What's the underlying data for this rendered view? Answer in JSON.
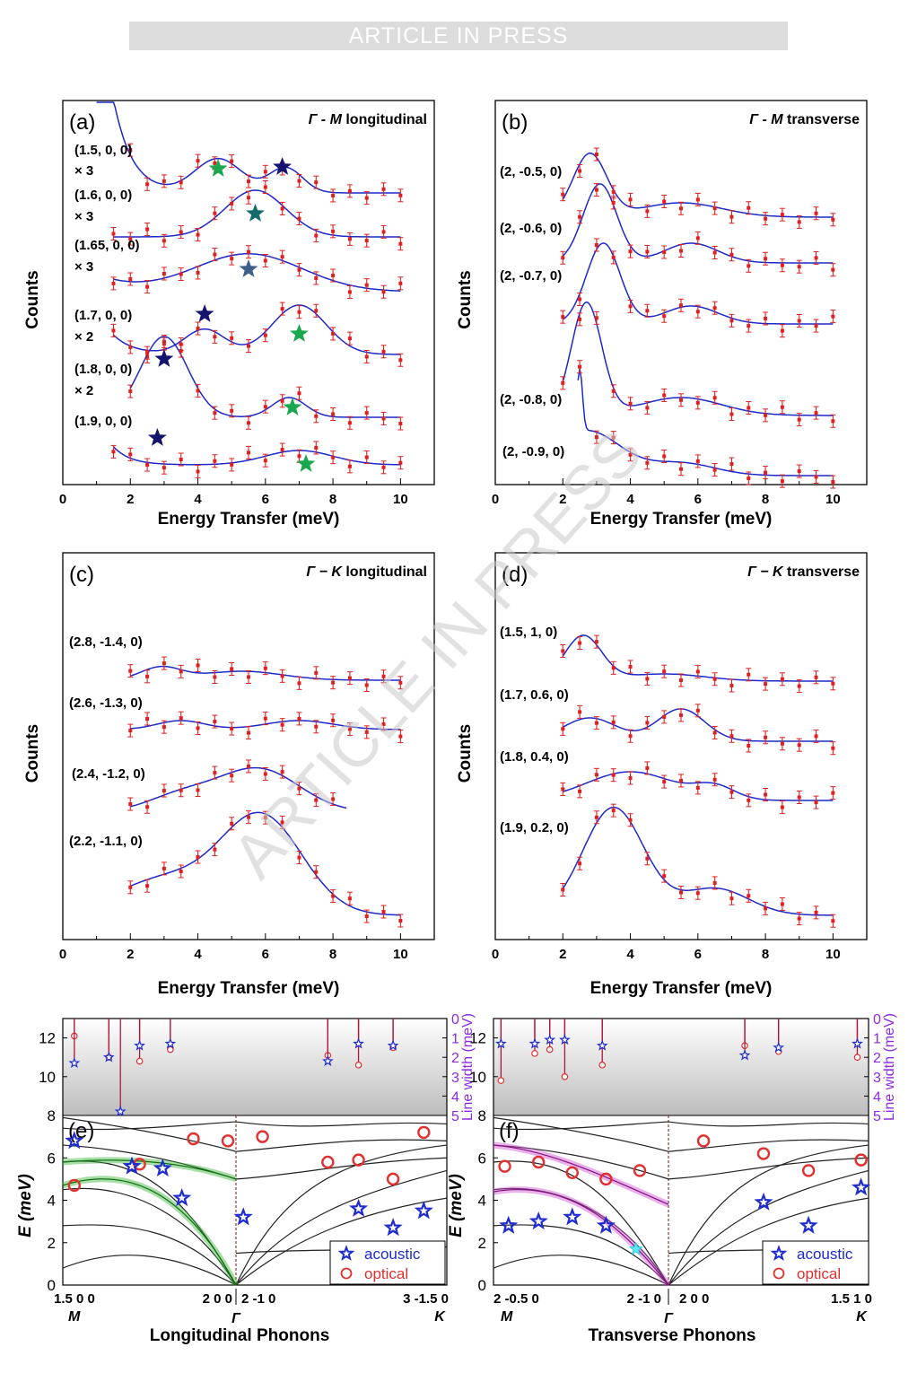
{
  "banner": "ARTICLE IN PRESS",
  "watermark": "ARTICLE IN PRESS",
  "chart_data": [
    {
      "id": "a",
      "type": "scatter",
      "panel_label": "(a)",
      "title": "Γ - M longitudinal",
      "title_sym": "Γ - M",
      "title_rest": " longitudinal",
      "xlabel": "Energy Transfer (meV)",
      "ylabel": "Counts",
      "xticks": [
        "0",
        "2",
        "4",
        "6",
        "8",
        "10"
      ],
      "xlim": [
        0,
        11
      ],
      "labels": [
        "(1.5, 0, 0)",
        "× 3",
        "(1.6, 0, 0)",
        "× 3",
        "(1.65, 0, 0)",
        "× 3",
        "(1.7, 0, 0)",
        "× 2",
        "(1.8, 0, 0)",
        "× 2",
        "(1.9, 0, 0)"
      ]
    },
    {
      "id": "b",
      "type": "scatter",
      "panel_label": "(b)",
      "title": "Γ - M transverse",
      "title_sym": "Γ - M",
      "title_rest": " transverse",
      "xlabel": "Energy Transfer (meV)",
      "ylabel": "Counts",
      "xticks": [
        "0",
        "2",
        "4",
        "6",
        "8",
        "10"
      ],
      "xlim": [
        0,
        11
      ],
      "labels": [
        "(2, -0.5, 0)",
        "(2, -0.6, 0)",
        "(2, -0.7, 0)",
        "(2, -0.8, 0)",
        "(2, -0.9, 0)"
      ]
    },
    {
      "id": "c",
      "type": "scatter",
      "panel_label": "(c)",
      "title": "Γ − K longitudinal",
      "title_sym": "Γ − K",
      "title_rest": " longitudinal",
      "xlabel": "Energy Transfer (meV)",
      "ylabel": "Counts",
      "xticks": [
        "0",
        "2",
        "4",
        "6",
        "8",
        "10"
      ],
      "xlim": [
        0,
        11
      ],
      "labels": [
        "(2.8, -1.4, 0)",
        "(2.6, -1.3, 0)",
        "(2.4, -1.2, 0)",
        "(2.2, -1.1, 0)"
      ]
    },
    {
      "id": "d",
      "type": "scatter",
      "panel_label": "(d)",
      "title": "Γ − K transverse",
      "title_sym": "Γ − K",
      "title_rest": " transverse",
      "xlabel": "Energy Transfer (meV)",
      "ylabel": "Counts",
      "xticks": [
        "0",
        "2",
        "4",
        "6",
        "8",
        "10"
      ],
      "xlim": [
        0,
        11
      ],
      "labels": [
        "(1.5, 1, 0)",
        "(1.7, 0.6, 0)",
        "(1.8, 0.4, 0)",
        "(1.9, 0.2, 0)"
      ]
    },
    {
      "id": "e",
      "type": "line",
      "panel_label": "(e)",
      "xlabel": "Longitudinal Phonons",
      "ylabel": "E (meV)",
      "ylim": [
        0,
        8
      ],
      "yticks": [
        "0",
        "2",
        "4",
        "6",
        "8"
      ],
      "top_yticks": [
        "8",
        "10",
        "12"
      ],
      "right_ylabel": "Line width (meV)",
      "right_ticks": [
        "0",
        "1",
        "2",
        "3",
        "4",
        "5"
      ],
      "qlabels": [
        "1.5 0 0",
        "2 0 0",
        "2 -1 0",
        "3 -1.5 0"
      ],
      "points": [
        "M",
        "Γ",
        "K"
      ],
      "legend": [
        "acoustic",
        "optical"
      ]
    },
    {
      "id": "f",
      "type": "line",
      "panel_label": "(f)",
      "xlabel": "Transverse Phonons",
      "ylabel": "E (meV)",
      "ylim": [
        0,
        8
      ],
      "yticks": [
        "0",
        "2",
        "4",
        "6",
        "8"
      ],
      "top_yticks": [
        "8",
        "10",
        "12"
      ],
      "right_ylabel": "Line width (meV)",
      "right_ticks": [
        "0",
        "1",
        "2",
        "3",
        "4",
        "5"
      ],
      "qlabels": [
        "2 -0.5 0",
        "2 -1 0",
        "2 0 0",
        "1.5 1 0"
      ],
      "points": [
        "M",
        "Γ",
        "K"
      ],
      "legend": [
        "acoustic",
        "optical"
      ]
    }
  ]
}
